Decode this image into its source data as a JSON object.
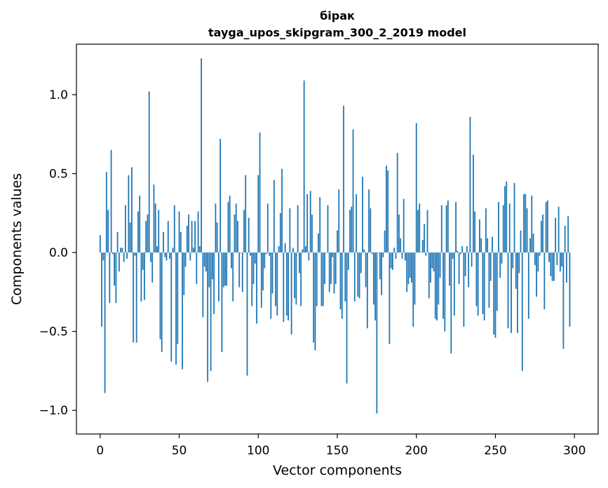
{
  "chart_data": {
    "type": "bar",
    "title_line1": "бірак",
    "title_line2": "tayga_upos_skipgram_300_2_2019 model",
    "xlabel": "Vector components",
    "ylabel": "Components values",
    "xlim": [
      -15,
      315
    ],
    "ylim": [
      -1.15,
      1.32
    ],
    "x_ticks": [
      0,
      50,
      100,
      150,
      200,
      250,
      300
    ],
    "x_tick_labels": [
      "0",
      "50",
      "100",
      "150",
      "200",
      "250",
      "300"
    ],
    "y_ticks": [
      -1.0,
      -0.5,
      0.0,
      0.5,
      1.0
    ],
    "y_tick_labels": [
      "−1.0",
      "−0.5",
      "0.0",
      "0.5",
      "1.0"
    ],
    "bar_color": "#1f77b4",
    "grid": false,
    "series": [
      {
        "values": [
          0.11,
          -0.47,
          -0.05,
          -0.89,
          0.51,
          0.27,
          -0.32,
          0.65,
          -0.01,
          -0.21,
          -0.32,
          0.13,
          -0.12,
          0.03,
          0.03,
          -0.06,
          0.3,
          -0.04,
          0.49,
          0.19,
          0.54,
          -0.57,
          -0.02,
          -0.57,
          0.26,
          0.36,
          -0.31,
          -0.11,
          -0.3,
          0.2,
          0.24,
          1.02,
          -0.06,
          -0.19,
          0.43,
          0.31,
          0.04,
          0.27,
          -0.55,
          -0.63,
          0.13,
          -0.03,
          -0.05,
          0.2,
          -0.04,
          -0.69,
          0.03,
          0.3,
          -0.71,
          -0.58,
          0.26,
          0.13,
          -0.74,
          -0.27,
          -0.09,
          0.17,
          0.24,
          -0.05,
          0.2,
          0.03,
          0.2,
          -0.2,
          0.26,
          0.04,
          1.23,
          -0.41,
          -0.09,
          -0.12,
          -0.82,
          -0.22,
          -0.75,
          -0.17,
          -0.39,
          0.31,
          0.19,
          -0.31,
          0.72,
          -0.63,
          -0.22,
          -0.21,
          -0.21,
          0.32,
          0.36,
          -0.1,
          -0.31,
          0.24,
          0.31,
          0.2,
          -0.22,
          0.0,
          -0.25,
          0.27,
          0.49,
          -0.78,
          0.22,
          -0.02,
          -0.34,
          -0.2,
          -0.07,
          -0.45,
          0.49,
          0.76,
          -0.35,
          -0.24,
          -0.1,
          -0.01,
          0.31,
          -0.02,
          -0.42,
          -0.26,
          0.46,
          -0.34,
          -0.4,
          0.04,
          0.25,
          0.53,
          -0.44,
          0.06,
          -0.4,
          -0.43,
          0.28,
          -0.52,
          0.03,
          -0.29,
          -0.33,
          0.3,
          -0.13,
          -0.34,
          0.02,
          1.09,
          0.04,
          0.37,
          -0.05,
          0.39,
          0.24,
          -0.57,
          -0.62,
          -0.34,
          0.12,
          0.35,
          -0.34,
          -0.34,
          -0.2,
          0.0,
          0.3,
          -0.25,
          -0.2,
          -0.03,
          -0.26,
          -0.2,
          0.14,
          0.4,
          -0.36,
          -0.42,
          0.93,
          -0.31,
          -0.83,
          -0.11,
          0.27,
          0.29,
          0.78,
          -0.31,
          0.37,
          -0.28,
          -0.29,
          -0.13,
          0.48,
          0.02,
          -0.22,
          -0.48,
          0.4,
          0.28,
          -0.01,
          -0.33,
          -0.43,
          -1.02,
          0.0,
          -0.17,
          -0.27,
          -0.03,
          0.14,
          0.55,
          0.52,
          -0.58,
          -0.1,
          -0.11,
          0.03,
          -0.04,
          0.63,
          0.24,
          0.09,
          -0.04,
          0.34,
          -0.05,
          -0.25,
          -0.2,
          -0.16,
          -0.19,
          -0.47,
          -0.33,
          0.82,
          0.27,
          0.31,
          0.0,
          0.08,
          0.18,
          -0.02,
          0.27,
          -0.29,
          -0.19,
          -0.1,
          -0.12,
          -0.42,
          -0.43,
          -0.33,
          -0.16,
          0.3,
          -0.42,
          -0.5,
          0.3,
          0.33,
          -0.21,
          -0.64,
          -0.04,
          -0.4,
          0.32,
          0.01,
          -0.2,
          -0.01,
          0.04,
          -0.47,
          -0.15,
          0.04,
          -0.22,
          0.86,
          -0.09,
          0.62,
          0.26,
          -0.34,
          -0.4,
          0.21,
          0.09,
          -0.39,
          -0.43,
          0.28,
          0.09,
          -0.35,
          -0.18,
          0.1,
          -0.52,
          -0.54,
          -0.37,
          0.32,
          -0.16,
          -0.07,
          0.3,
          0.42,
          0.45,
          -0.48,
          0.31,
          -0.51,
          -0.1,
          0.44,
          -0.23,
          -0.51,
          -0.13,
          0.14,
          -0.75,
          0.37,
          0.37,
          0.28,
          -0.42,
          0.09,
          0.36,
          0.12,
          -0.08,
          -0.28,
          -0.12,
          -0.02,
          0.2,
          0.24,
          -0.36,
          0.32,
          0.33,
          -0.06,
          -0.15,
          -0.18,
          -0.18,
          0.22,
          -0.08,
          0.29,
          -0.12,
          -0.09,
          -0.61,
          0.17,
          -0.19,
          0.23,
          -0.47
        ]
      }
    ]
  }
}
